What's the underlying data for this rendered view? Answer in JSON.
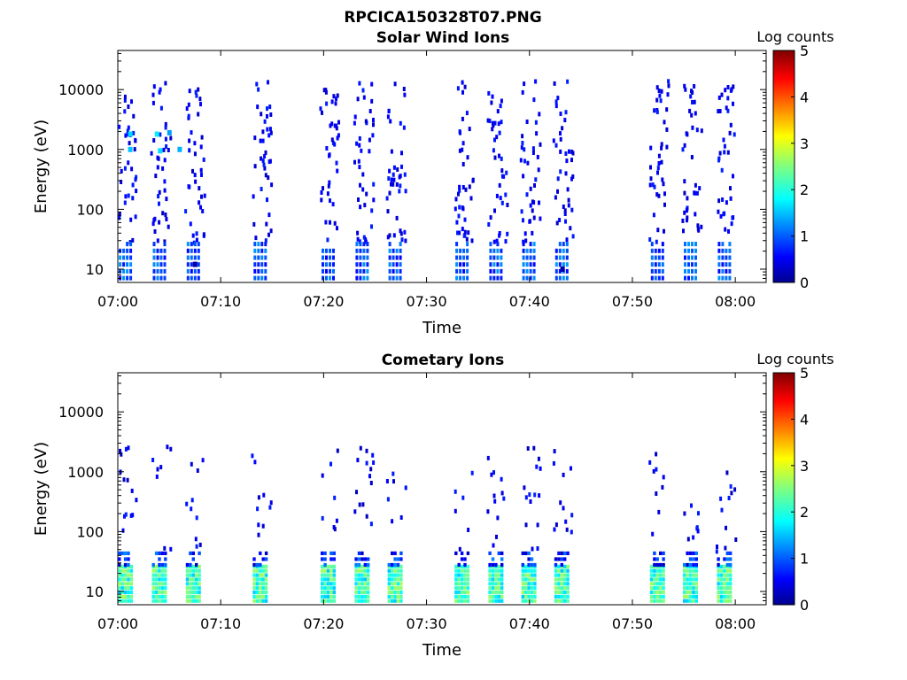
{
  "figure": {
    "title": "RPCICA150328T07.PNG"
  },
  "chart_data": [
    {
      "type": "heatmap",
      "title": "Solar Wind Ions",
      "xlabel": "Time",
      "ylabel": "Energy (eV)",
      "x_ticks": [
        "07:00",
        "07:10",
        "07:20",
        "07:30",
        "07:40",
        "07:50",
        "08:00"
      ],
      "y_ticks": [
        "10",
        "100",
        "1000",
        "10000"
      ],
      "y_scale": "log",
      "ylim": [
        6,
        45000
      ],
      "xlim": [
        "07:00",
        "08:03"
      ],
      "colorbar": {
        "label": "Log counts",
        "ticks": [
          "0",
          "1",
          "2",
          "3",
          "4",
          "5"
        ],
        "range": [
          0,
          5
        ],
        "colormap": "jet"
      },
      "scan_times_min": [
        0.7,
        4.0,
        7.3,
        13.8,
        20.4,
        23.7,
        26.9,
        33.4,
        36.7,
        39.9,
        43.1,
        52.4,
        55.6,
        58.9
      ],
      "scan_counts": [
        {
          "t": 1.0,
          "energy_ev": 1800,
          "log_counts": 1.7
        },
        {
          "t": 1.0,
          "energy_ev": 1000,
          "log_counts": 1.6
        },
        {
          "t": 3.6,
          "energy_ev": 1800,
          "log_counts": 1.8
        },
        {
          "t": 3.9,
          "energy_ev": 950,
          "log_counts": 1.7
        },
        {
          "t": 4.8,
          "energy_ev": 1900,
          "log_counts": 1.4
        },
        {
          "t": 5.8,
          "energy_ev": 1000,
          "log_counts": 1.5
        },
        {
          "t": 7.3,
          "energy_ev": 12,
          "log_counts": 0.2
        },
        {
          "t": 43.0,
          "energy_ev": 10,
          "log_counts": 0.2
        }
      ]
    },
    {
      "type": "heatmap",
      "title": "Cometary Ions",
      "xlabel": "Time",
      "ylabel": "Energy (eV)",
      "x_ticks": [
        "07:00",
        "07:10",
        "07:20",
        "07:30",
        "07:40",
        "07:50",
        "08:00"
      ],
      "y_ticks": [
        "10",
        "100",
        "1000",
        "10000"
      ],
      "y_scale": "log",
      "ylim": [
        6,
        45000
      ],
      "xlim": [
        "07:00",
        "08:03"
      ],
      "colorbar": {
        "label": "Log counts",
        "ticks": [
          "0",
          "1",
          "2",
          "3",
          "4",
          "5"
        ],
        "range": [
          0,
          5
        ],
        "colormap": "jet"
      },
      "scan_times_min": [
        0.7,
        4.0,
        7.3,
        13.8,
        20.4,
        23.7,
        26.9,
        33.4,
        36.7,
        39.9,
        43.1,
        52.4,
        55.6,
        58.9
      ],
      "scan_counts": [
        {
          "t": 0.7,
          "energy_ev": 15,
          "log_counts": 2.4
        },
        {
          "t": 4.0,
          "energy_ev": 15,
          "log_counts": 2.5
        },
        {
          "t": 7.3,
          "energy_ev": 15,
          "log_counts": 2.4
        },
        {
          "t": 13.8,
          "energy_ev": 15,
          "log_counts": 2.4
        },
        {
          "t": 20.4,
          "energy_ev": 15,
          "log_counts": 2.3
        },
        {
          "t": 23.7,
          "energy_ev": 15,
          "log_counts": 2.4
        },
        {
          "t": 26.9,
          "energy_ev": 15,
          "log_counts": 2.3
        },
        {
          "t": 33.4,
          "energy_ev": 15,
          "log_counts": 2.3
        },
        {
          "t": 36.7,
          "energy_ev": 15,
          "log_counts": 2.5
        },
        {
          "t": 39.9,
          "energy_ev": 15,
          "log_counts": 2.5
        },
        {
          "t": 43.1,
          "energy_ev": 15,
          "log_counts": 2.4
        },
        {
          "t": 52.4,
          "energy_ev": 15,
          "log_counts": 2.6
        },
        {
          "t": 55.6,
          "energy_ev": 15,
          "log_counts": 2.5
        },
        {
          "t": 58.9,
          "energy_ev": 15,
          "log_counts": 2.5
        }
      ]
    }
  ]
}
